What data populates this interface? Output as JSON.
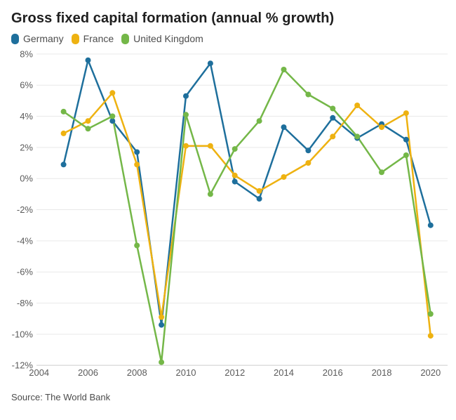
{
  "header": {
    "title": "Gross fixed capital formation (annual % growth)"
  },
  "legend": [
    {
      "label": "Germany",
      "color": "#1e6f9c"
    },
    {
      "label": "France",
      "color": "#eeb211"
    },
    {
      "label": "United Kingdom",
      "color": "#74b748"
    }
  ],
  "footer": {
    "source": "Source: The World Bank"
  },
  "chart_data": {
    "type": "line",
    "title": "Gross fixed capital formation (annual % growth)",
    "xlabel": "",
    "ylabel": "",
    "x": [
      2005,
      2006,
      2007,
      2008,
      2009,
      2010,
      2011,
      2012,
      2013,
      2014,
      2015,
      2016,
      2017,
      2018,
      2019,
      2020
    ],
    "series": [
      {
        "name": "Germany",
        "color": "#1e6f9c",
        "values": [
          0.9,
          7.6,
          3.7,
          1.7,
          -9.4,
          5.3,
          7.4,
          -0.2,
          -1.3,
          3.3,
          1.8,
          3.9,
          2.6,
          3.5,
          2.5,
          -3.0
        ]
      },
      {
        "name": "France",
        "color": "#eeb211",
        "values": [
          2.9,
          3.7,
          5.5,
          0.9,
          -8.9,
          2.1,
          2.1,
          0.2,
          -0.8,
          0.1,
          1.0,
          2.7,
          4.7,
          3.3,
          4.2,
          -10.1
        ]
      },
      {
        "name": "United Kingdom",
        "color": "#74b748",
        "values": [
          4.3,
          3.2,
          4.0,
          -4.3,
          -11.8,
          4.1,
          -1.0,
          1.9,
          3.7,
          7.0,
          5.4,
          4.5,
          2.7,
          0.4,
          1.5,
          -8.7
        ]
      }
    ],
    "ylim": [
      -12,
      8
    ],
    "ytick_step": 2,
    "ytick_suffix": "%",
    "xticks": [
      2004,
      2006,
      2008,
      2010,
      2012,
      2014,
      2016,
      2018,
      2020
    ],
    "xlim": [
      2004,
      2020
    ],
    "grid": "horizontal",
    "legend_position": "top",
    "marker": "circle",
    "colors": {
      "gridline": "#e9e9e9",
      "axis_line": "#cccccc",
      "tick_text": "#5b5b5b",
      "title_text": "#1f1f1f",
      "background": "#ffffff"
    }
  }
}
